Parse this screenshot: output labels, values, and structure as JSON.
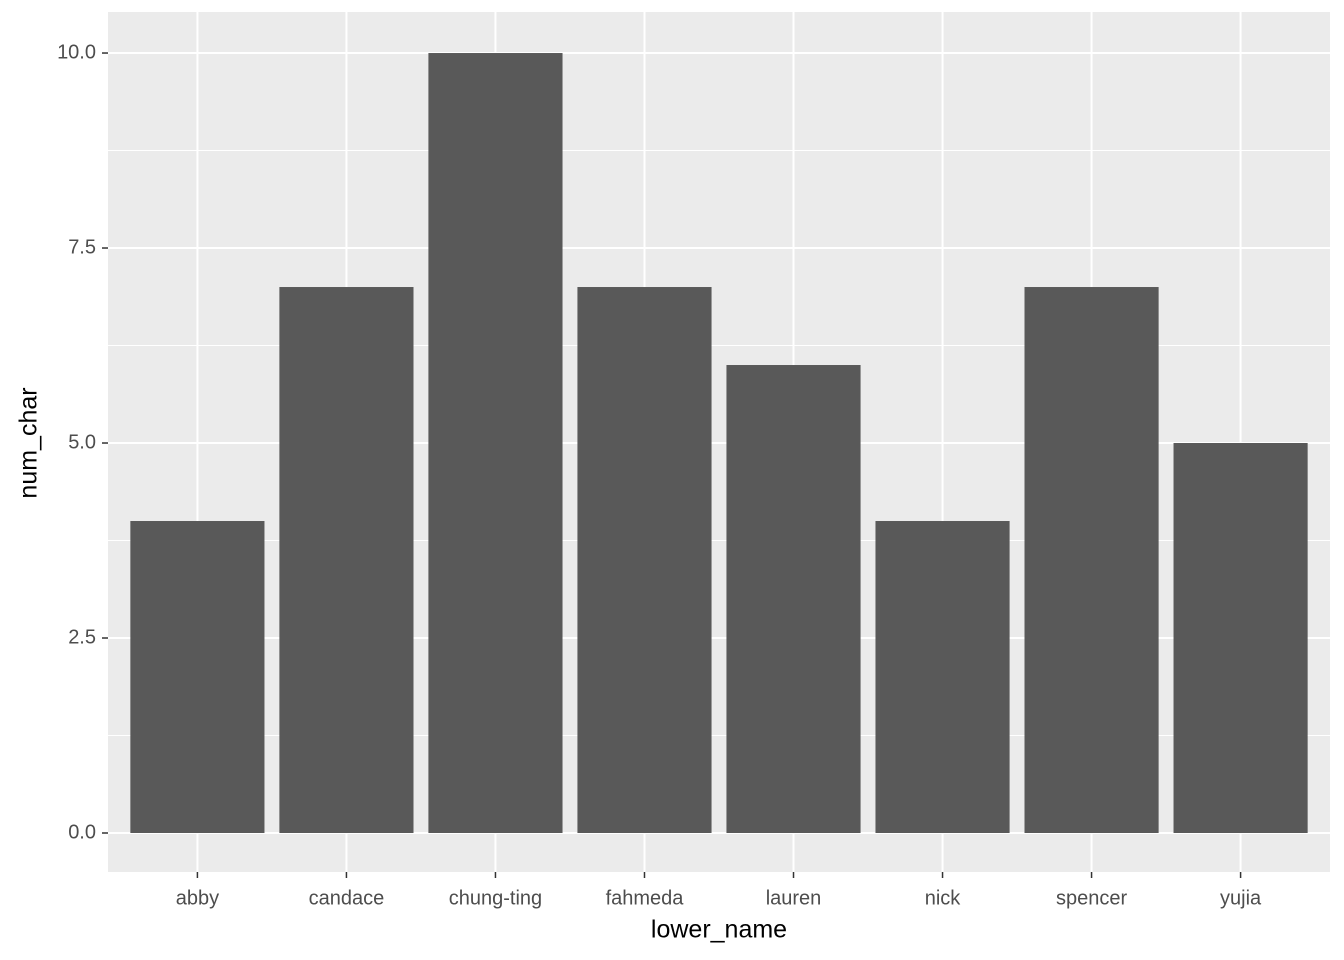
{
  "chart_data": {
    "type": "bar",
    "x_label": "lower_name",
    "y_label": "num_char",
    "categories": [
      "abby",
      "candace",
      "chung-ting",
      "fahmeda",
      "lauren",
      "nick",
      "spencer",
      "yujia"
    ],
    "values": [
      4,
      7,
      10,
      7,
      6,
      4,
      7,
      5
    ],
    "color": "#595959",
    "ylim": [
      -0.5,
      10.526
    ],
    "yticks": [
      {
        "value": 0,
        "label": "0.0"
      },
      2.5,
      {
        "value": 5,
        "label": "5.0"
      },
      7.5,
      {
        "value": 10,
        "label": "10.0"
      }
    ],
    "grid": true
  }
}
